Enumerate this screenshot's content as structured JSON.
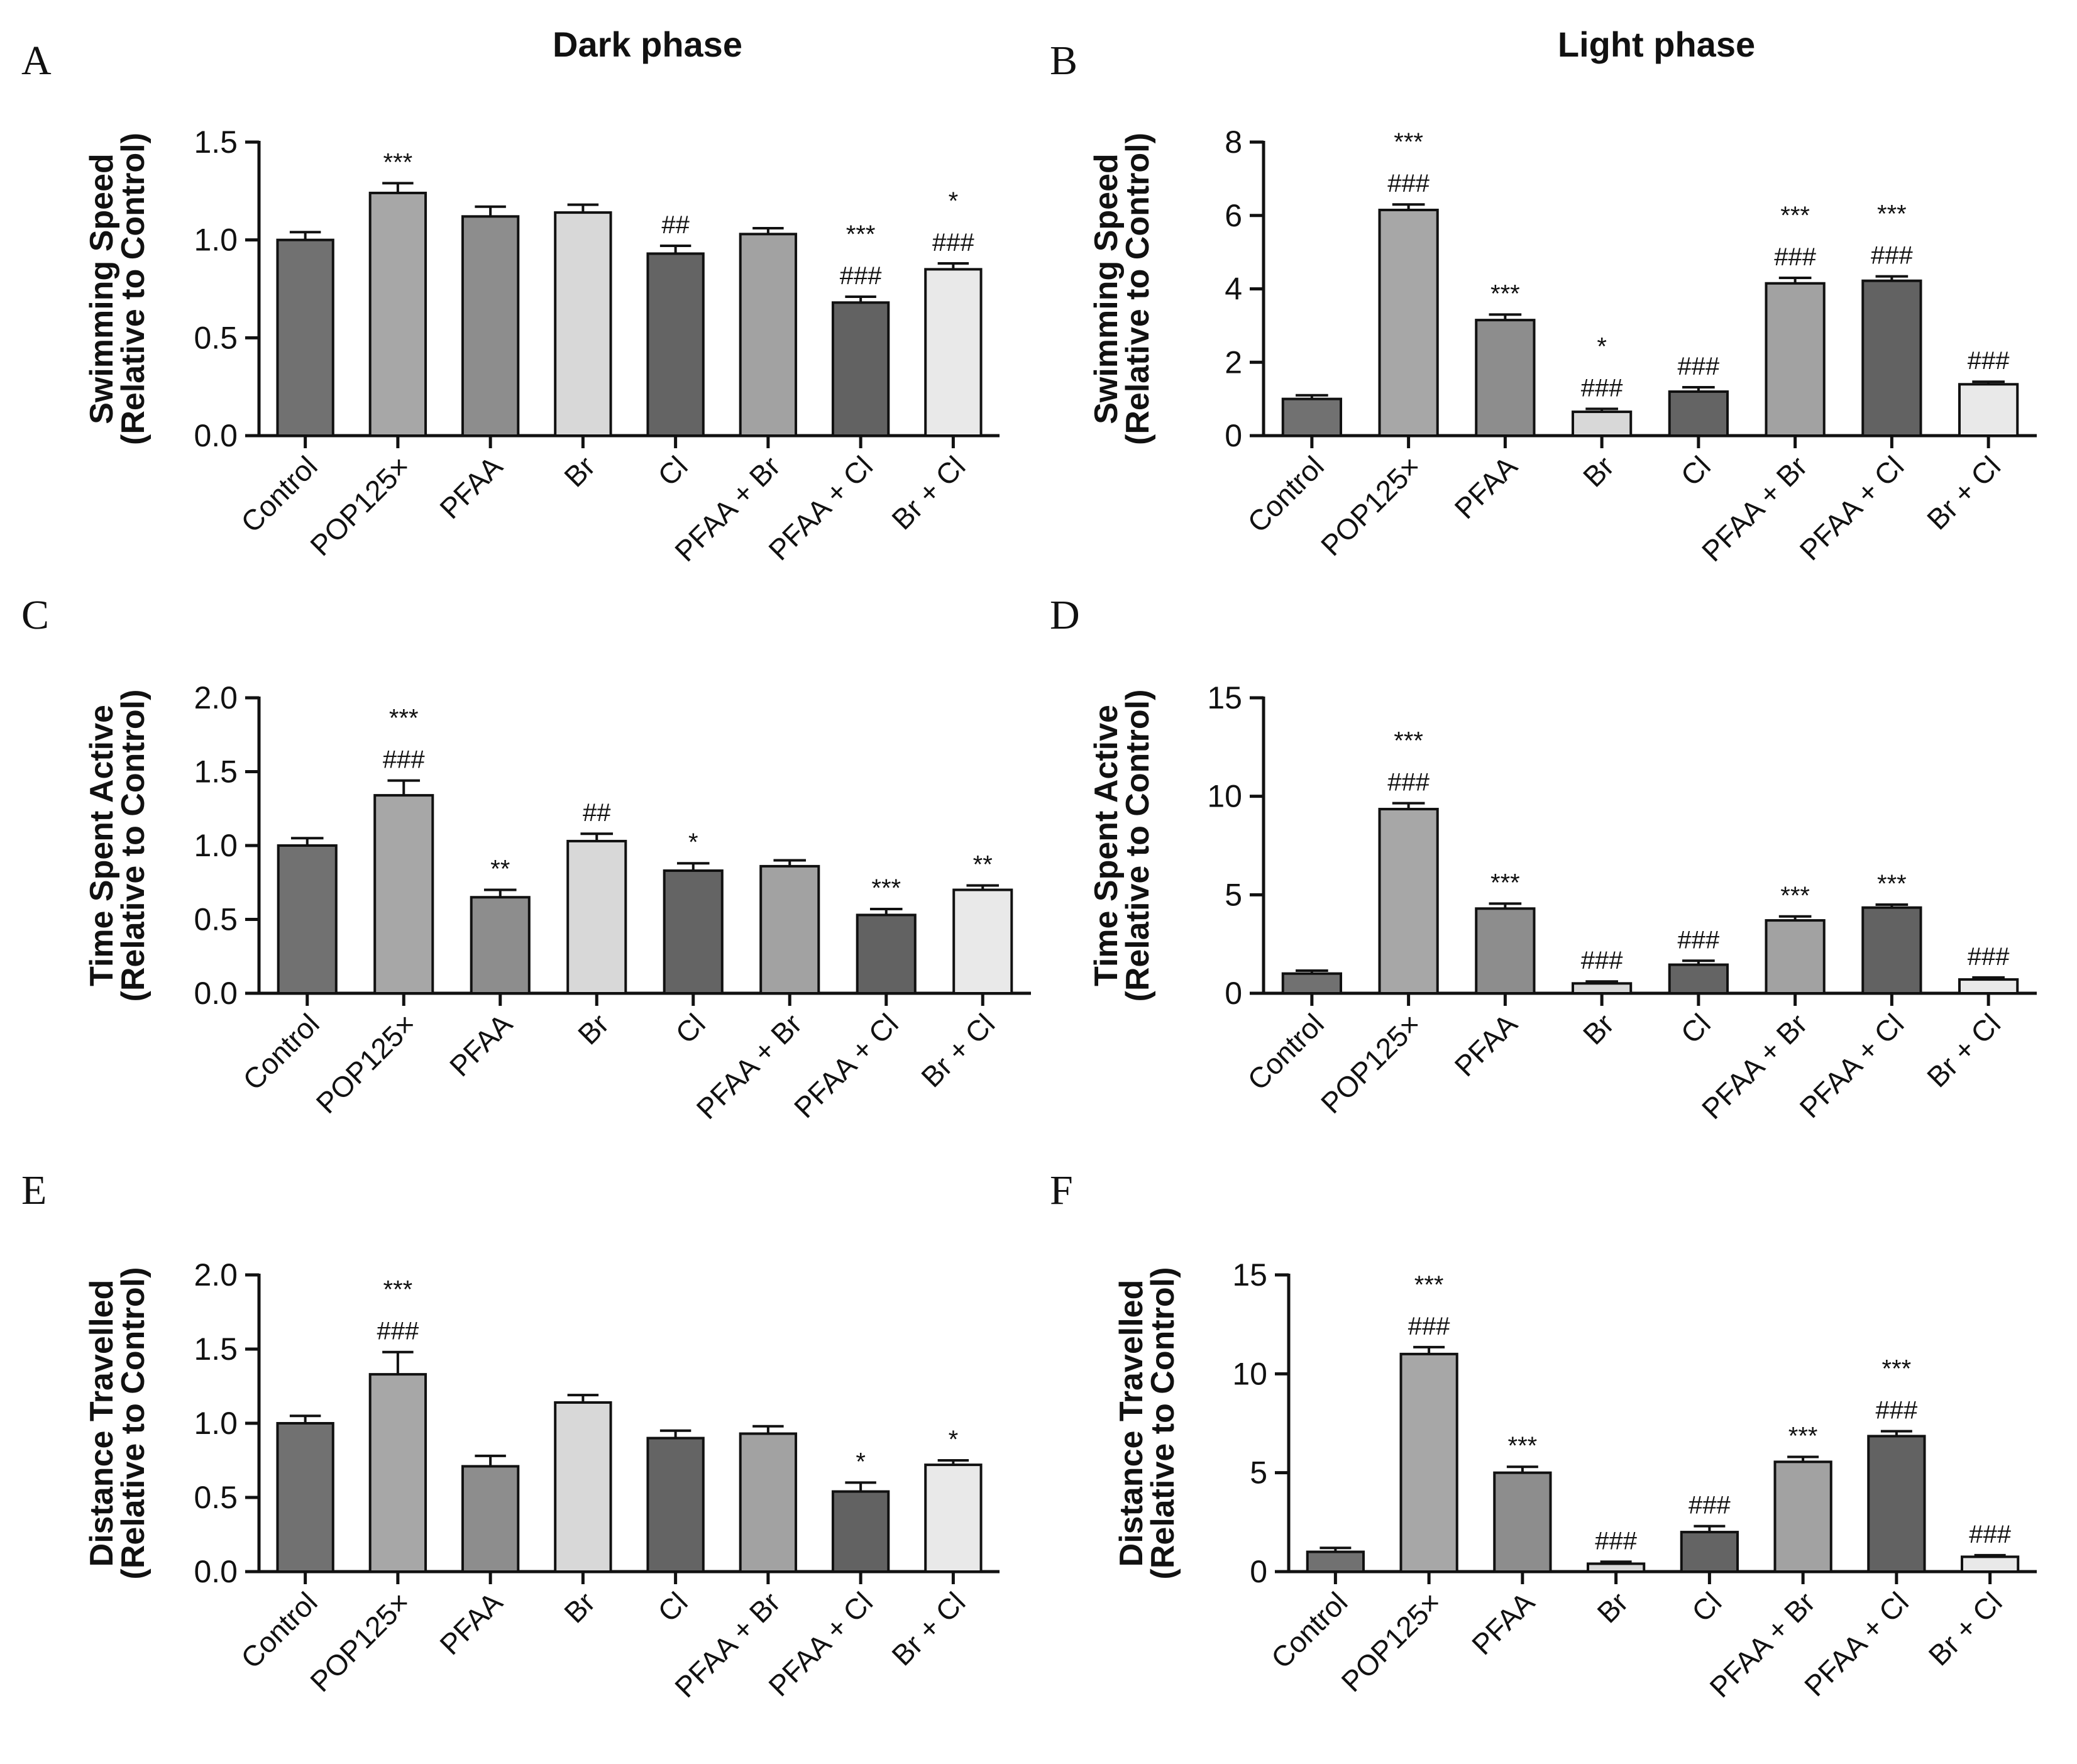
{
  "figure": {
    "colors": {
      "Control": "#717171",
      "POP125×": "#a7a7a7",
      "PFAA": "#8d8d8d",
      "Br": "#d8d8d8",
      "Cl": "#646464",
      "PFAA + Br": "#a2a2a2",
      "PFAA + Cl": "#626262",
      "Br + Cl": "#e9e9e9"
    }
  },
  "chart_data": [
    {
      "id": "A",
      "letter": "A",
      "title": "Dark phase",
      "type": "bar",
      "ylabel_line1": "Swimming Speed",
      "ylabel_line2": "(Relative to Control)",
      "ylim": [
        0,
        1.5
      ],
      "yticks": [
        "0.0",
        "0.5",
        "1.0",
        "1.5"
      ],
      "categories": [
        "Control",
        "POP125×",
        "PFAA",
        "Br",
        "Cl",
        "PFAA + Br",
        "PFAA + Cl",
        "Br + Cl"
      ],
      "values": [
        1.0,
        1.24,
        1.12,
        1.14,
        0.93,
        1.03,
        0.68,
        0.85
      ],
      "errors": [
        0.04,
        0.05,
        0.05,
        0.04,
        0.04,
        0.03,
        0.03,
        0.03
      ],
      "annotations": [
        [],
        [
          "***"
        ],
        [],
        [],
        [
          "##"
        ],
        [],
        [
          "***",
          "###"
        ],
        [
          "*",
          "###"
        ]
      ]
    },
    {
      "id": "B",
      "letter": "B",
      "title": "Light phase",
      "type": "bar",
      "ylabel_line1": "Swimming Speed",
      "ylabel_line2": "(Relative to Control)",
      "ylim": [
        0,
        8
      ],
      "yticks": [
        "0",
        "2",
        "4",
        "6",
        "8"
      ],
      "categories": [
        "Control",
        "POP125×",
        "PFAA",
        "Br",
        "Cl",
        "PFAA + Br",
        "PFAA + Cl",
        "Br + Cl"
      ],
      "values": [
        1.0,
        6.15,
        3.15,
        0.65,
        1.2,
        4.15,
        4.22,
        1.4
      ],
      "errors": [
        0.1,
        0.15,
        0.15,
        0.08,
        0.12,
        0.15,
        0.12,
        0.07
      ],
      "annotations": [
        [],
        [
          "***",
          "###"
        ],
        [
          "***"
        ],
        [
          "*",
          "###"
        ],
        [
          "###"
        ],
        [
          "***",
          "###"
        ],
        [
          "***",
          "###"
        ],
        [
          "###"
        ]
      ]
    },
    {
      "id": "C",
      "letter": "C",
      "title": "",
      "type": "bar",
      "ylabel_line1": "Time Spent Active",
      "ylabel_line2": "(Relative to Control)",
      "ylim": [
        0,
        2.0
      ],
      "yticks": [
        "0.0",
        "0.5",
        "1.0",
        "1.5",
        "2.0"
      ],
      "categories": [
        "Control",
        "POP125×",
        "PFAA",
        "Br",
        "Cl",
        "PFAA + Br",
        "PFAA + Cl",
        "Br + Cl"
      ],
      "values": [
        1.0,
        1.34,
        0.65,
        1.03,
        0.83,
        0.86,
        0.53,
        0.7
      ],
      "errors": [
        0.05,
        0.1,
        0.05,
        0.05,
        0.05,
        0.04,
        0.04,
        0.03
      ],
      "annotations": [
        [],
        [
          "***",
          "###"
        ],
        [
          "**"
        ],
        [
          "##"
        ],
        [
          "*"
        ],
        [],
        [
          "***"
        ],
        [
          "**"
        ]
      ]
    },
    {
      "id": "D",
      "letter": "D",
      "title": "",
      "type": "bar",
      "ylabel_line1": "Time Spent Active",
      "ylabel_line2": "(Relative to Control)",
      "ylim": [
        0,
        15
      ],
      "yticks": [
        "0",
        "5",
        "10",
        "15"
      ],
      "categories": [
        "Control",
        "POP125×",
        "PFAA",
        "Br",
        "Cl",
        "PFAA + Br",
        "PFAA + Cl",
        "Br + Cl"
      ],
      "values": [
        1.0,
        9.35,
        4.3,
        0.5,
        1.45,
        3.7,
        4.35,
        0.7
      ],
      "errors": [
        0.15,
        0.3,
        0.25,
        0.1,
        0.2,
        0.2,
        0.15,
        0.1
      ],
      "annotations": [
        [],
        [
          "***",
          "###"
        ],
        [
          "***"
        ],
        [
          "###"
        ],
        [
          "###"
        ],
        [
          "***"
        ],
        [
          "***"
        ],
        [
          "###"
        ]
      ]
    },
    {
      "id": "E",
      "letter": "E",
      "title": "",
      "type": "bar",
      "ylabel_line1": "Distance Travelled",
      "ylabel_line2": "(Relative to Control)",
      "ylim": [
        0,
        2.0
      ],
      "yticks": [
        "0.0",
        "0.5",
        "1.0",
        "1.5",
        "2.0"
      ],
      "categories": [
        "Control",
        "POP125×",
        "PFAA",
        "Br",
        "Cl",
        "PFAA + Br",
        "PFAA + Cl",
        "Br + Cl"
      ],
      "values": [
        1.0,
        1.33,
        0.71,
        1.14,
        0.9,
        0.93,
        0.54,
        0.72
      ],
      "errors": [
        0.05,
        0.15,
        0.07,
        0.05,
        0.05,
        0.05,
        0.06,
        0.03
      ],
      "annotations": [
        [],
        [
          "***",
          "###"
        ],
        [],
        [],
        [],
        [],
        [
          "*"
        ],
        [
          "*"
        ]
      ]
    },
    {
      "id": "F",
      "letter": "F",
      "title": "",
      "type": "bar",
      "ylabel_line1": "Distance Travelled",
      "ylabel_line2": "(Relative to Control)",
      "ylim": [
        0,
        15
      ],
      "yticks": [
        "0",
        "5",
        "10",
        "15"
      ],
      "categories": [
        "Control",
        "POP125×",
        "PFAA",
        "Br",
        "Cl",
        "PFAA + Br",
        "PFAA + Cl",
        "Br + Cl"
      ],
      "values": [
        1.0,
        11.0,
        5.0,
        0.4,
        2.0,
        5.55,
        6.85,
        0.75
      ],
      "errors": [
        0.2,
        0.35,
        0.3,
        0.1,
        0.3,
        0.25,
        0.25,
        0.08
      ],
      "annotations": [
        [],
        [
          "***",
          "###"
        ],
        [
          "***"
        ],
        [
          "###"
        ],
        [
          "###"
        ],
        [
          "***"
        ],
        [
          "***",
          "###"
        ],
        [
          "###"
        ]
      ]
    }
  ]
}
